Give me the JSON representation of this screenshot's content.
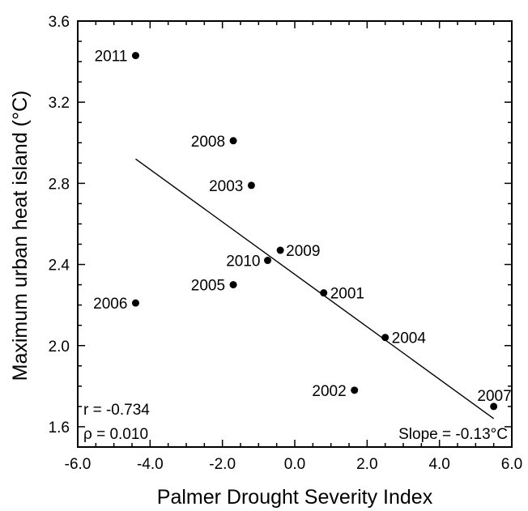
{
  "chart_data": {
    "type": "scatter",
    "xlabel": "Palmer Drought Severity Index",
    "ylabel": "Maximum urban heat island (°C)",
    "xlim": [
      -6.0,
      6.0
    ],
    "ylim": [
      1.5,
      3.6
    ],
    "x_ticks": [
      "-6.0",
      "-4.0",
      "-2.0",
      "0.0",
      "2.0",
      "4.0",
      "6.0"
    ],
    "y_ticks": [
      "1.6",
      "2.0",
      "2.4",
      "2.8",
      "3.2",
      "3.6"
    ],
    "points": [
      {
        "label": "2011",
        "x": -4.4,
        "y": 3.43
      },
      {
        "label": "2008",
        "x": -1.7,
        "y": 3.01
      },
      {
        "label": "2003",
        "x": -1.2,
        "y": 2.79
      },
      {
        "label": "2009",
        "x": -0.4,
        "y": 2.47
      },
      {
        "label": "2010",
        "x": -0.75,
        "y": 2.42
      },
      {
        "label": "2005",
        "x": -1.7,
        "y": 2.3
      },
      {
        "label": "2006",
        "x": -4.4,
        "y": 2.21
      },
      {
        "label": "2001",
        "x": 0.8,
        "y": 2.26
      },
      {
        "label": "2004",
        "x": 2.5,
        "y": 2.04
      },
      {
        "label": "2002",
        "x": 1.65,
        "y": 1.78
      },
      {
        "label": "2007",
        "x": 5.5,
        "y": 1.7
      }
    ],
    "regression_line": {
      "x": [
        -4.4,
        5.5
      ],
      "y": [
        2.92,
        1.64
      ]
    },
    "annotations": {
      "r": "r = -0.734",
      "rho": "ρ = 0.010",
      "slope": "Slope = -0.13°C"
    },
    "grid": false,
    "legend": "none"
  }
}
